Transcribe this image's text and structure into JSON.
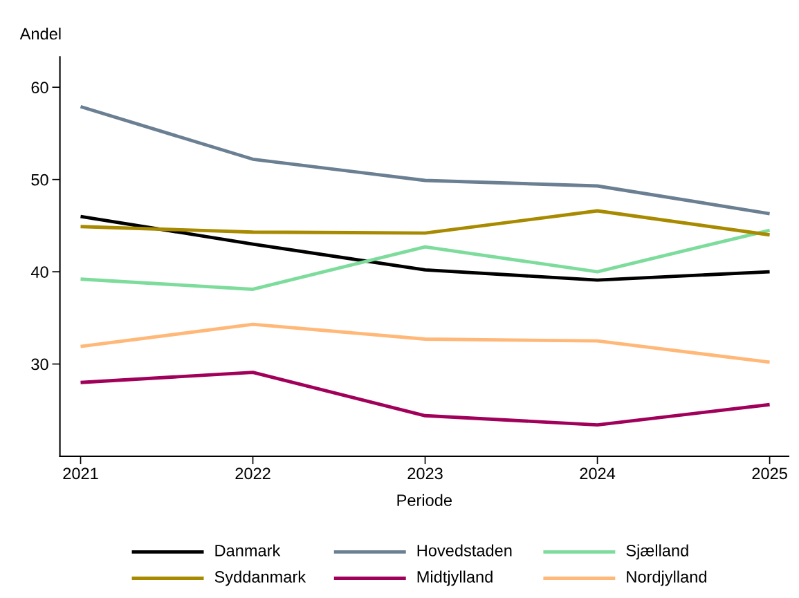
{
  "chart_data": {
    "type": "line",
    "ylabel": "Andel",
    "xlabel": "Periode",
    "x": [
      2021,
      2022,
      2023,
      2024,
      2025
    ],
    "xlim": [
      2020.88,
      2025.11
    ],
    "xticks": [
      2021,
      2022,
      2023,
      2024,
      2025
    ],
    "ylim": [
      20,
      63.3
    ],
    "yticks": [
      30,
      40,
      50,
      60
    ],
    "grid": false,
    "legend": "bottom",
    "marker": "none",
    "line_style": "solid",
    "series": [
      {
        "name": "Danmark",
        "color": "#000000",
        "values": [
          46.0,
          43.0,
          40.2,
          39.1,
          40.0
        ]
      },
      {
        "name": "Hovedstaden",
        "color": "#6b7f93",
        "values": [
          57.9,
          52.2,
          49.9,
          49.3,
          46.3
        ]
      },
      {
        "name": "Sjælland",
        "color": "#7ddc9c",
        "values": [
          39.2,
          38.1,
          42.7,
          40.0,
          44.5
        ]
      },
      {
        "name": "Syddanmark",
        "color": "#a88a00",
        "values": [
          44.9,
          44.3,
          44.2,
          46.6,
          44.0
        ]
      },
      {
        "name": "Midtjylland",
        "color": "#a0005a",
        "values": [
          28.0,
          29.1,
          24.4,
          23.4,
          25.6
        ]
      },
      {
        "name": "Nordjylland",
        "color": "#ffb878",
        "values": [
          31.9,
          34.3,
          32.7,
          32.5,
          30.2
        ]
      }
    ]
  }
}
